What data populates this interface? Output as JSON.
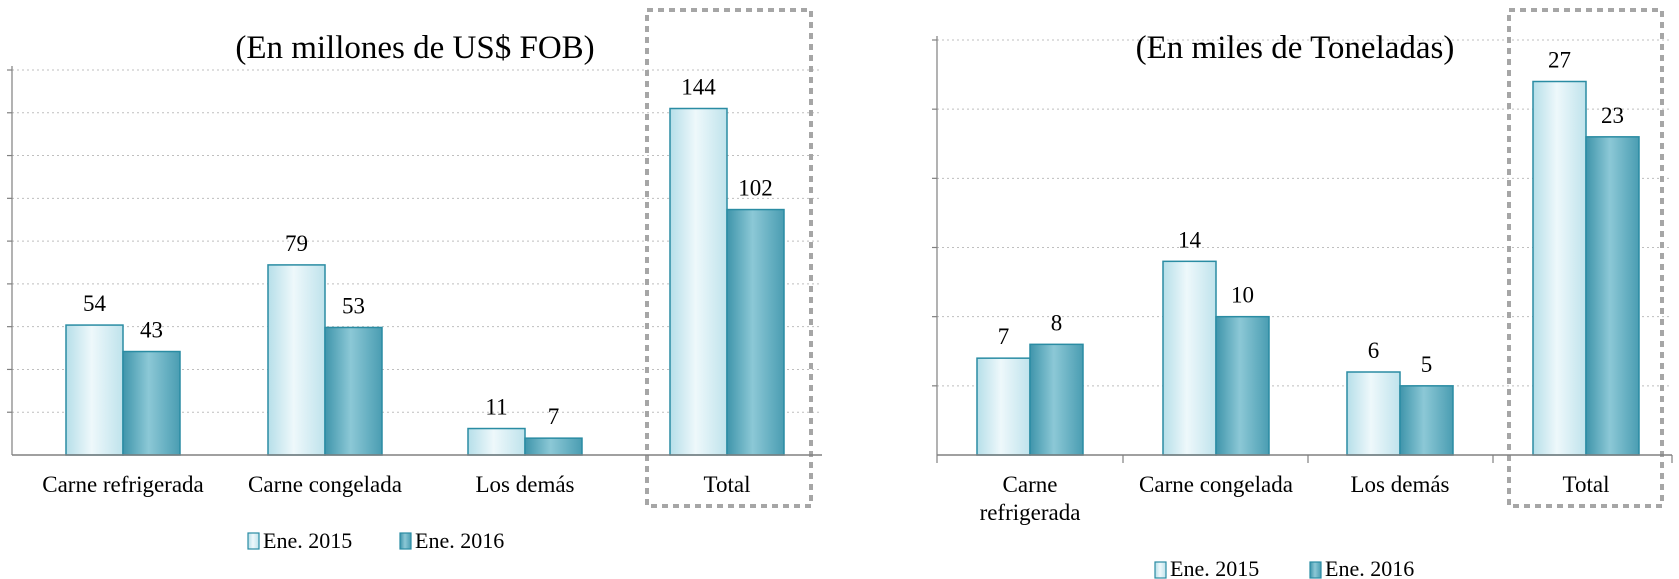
{
  "colors": {
    "ene2015_fill": "#d6eef4",
    "ene2016_fill": "#6fb3c5",
    "bar_border": "#2a8ca3",
    "grid": "#bfbfbf",
    "axis": "#808080",
    "highlight_box": "#a6a6a6"
  },
  "chart_data": [
    {
      "type": "bar",
      "title": "(En millones de US$ FOB)",
      "categories": [
        "Carne refrigerada",
        "Carne congelada",
        "Los demás",
        "Total"
      ],
      "series": [
        {
          "name": "Ene. 2015",
          "values": [
            54,
            79,
            11,
            144
          ]
        },
        {
          "name": "Ene. 2016",
          "values": [
            43,
            53,
            7,
            102
          ]
        }
      ],
      "ylim": [
        0,
        160
      ],
      "grid": true,
      "legend": "bottom",
      "highlighted_category": "Total"
    },
    {
      "type": "bar",
      "title": "(En miles de Toneladas)",
      "categories": [
        "Carne refrigerada",
        "Carne congelada",
        "Los demás",
        "Total"
      ],
      "series": [
        {
          "name": "Ene. 2015",
          "values": [
            7,
            14,
            6,
            27
          ]
        },
        {
          "name": "Ene. 2016",
          "values": [
            8,
            10,
            5,
            23
          ]
        }
      ],
      "ylim": [
        0,
        30
      ],
      "grid": true,
      "legend": "bottom",
      "highlighted_category": "Total"
    }
  ]
}
